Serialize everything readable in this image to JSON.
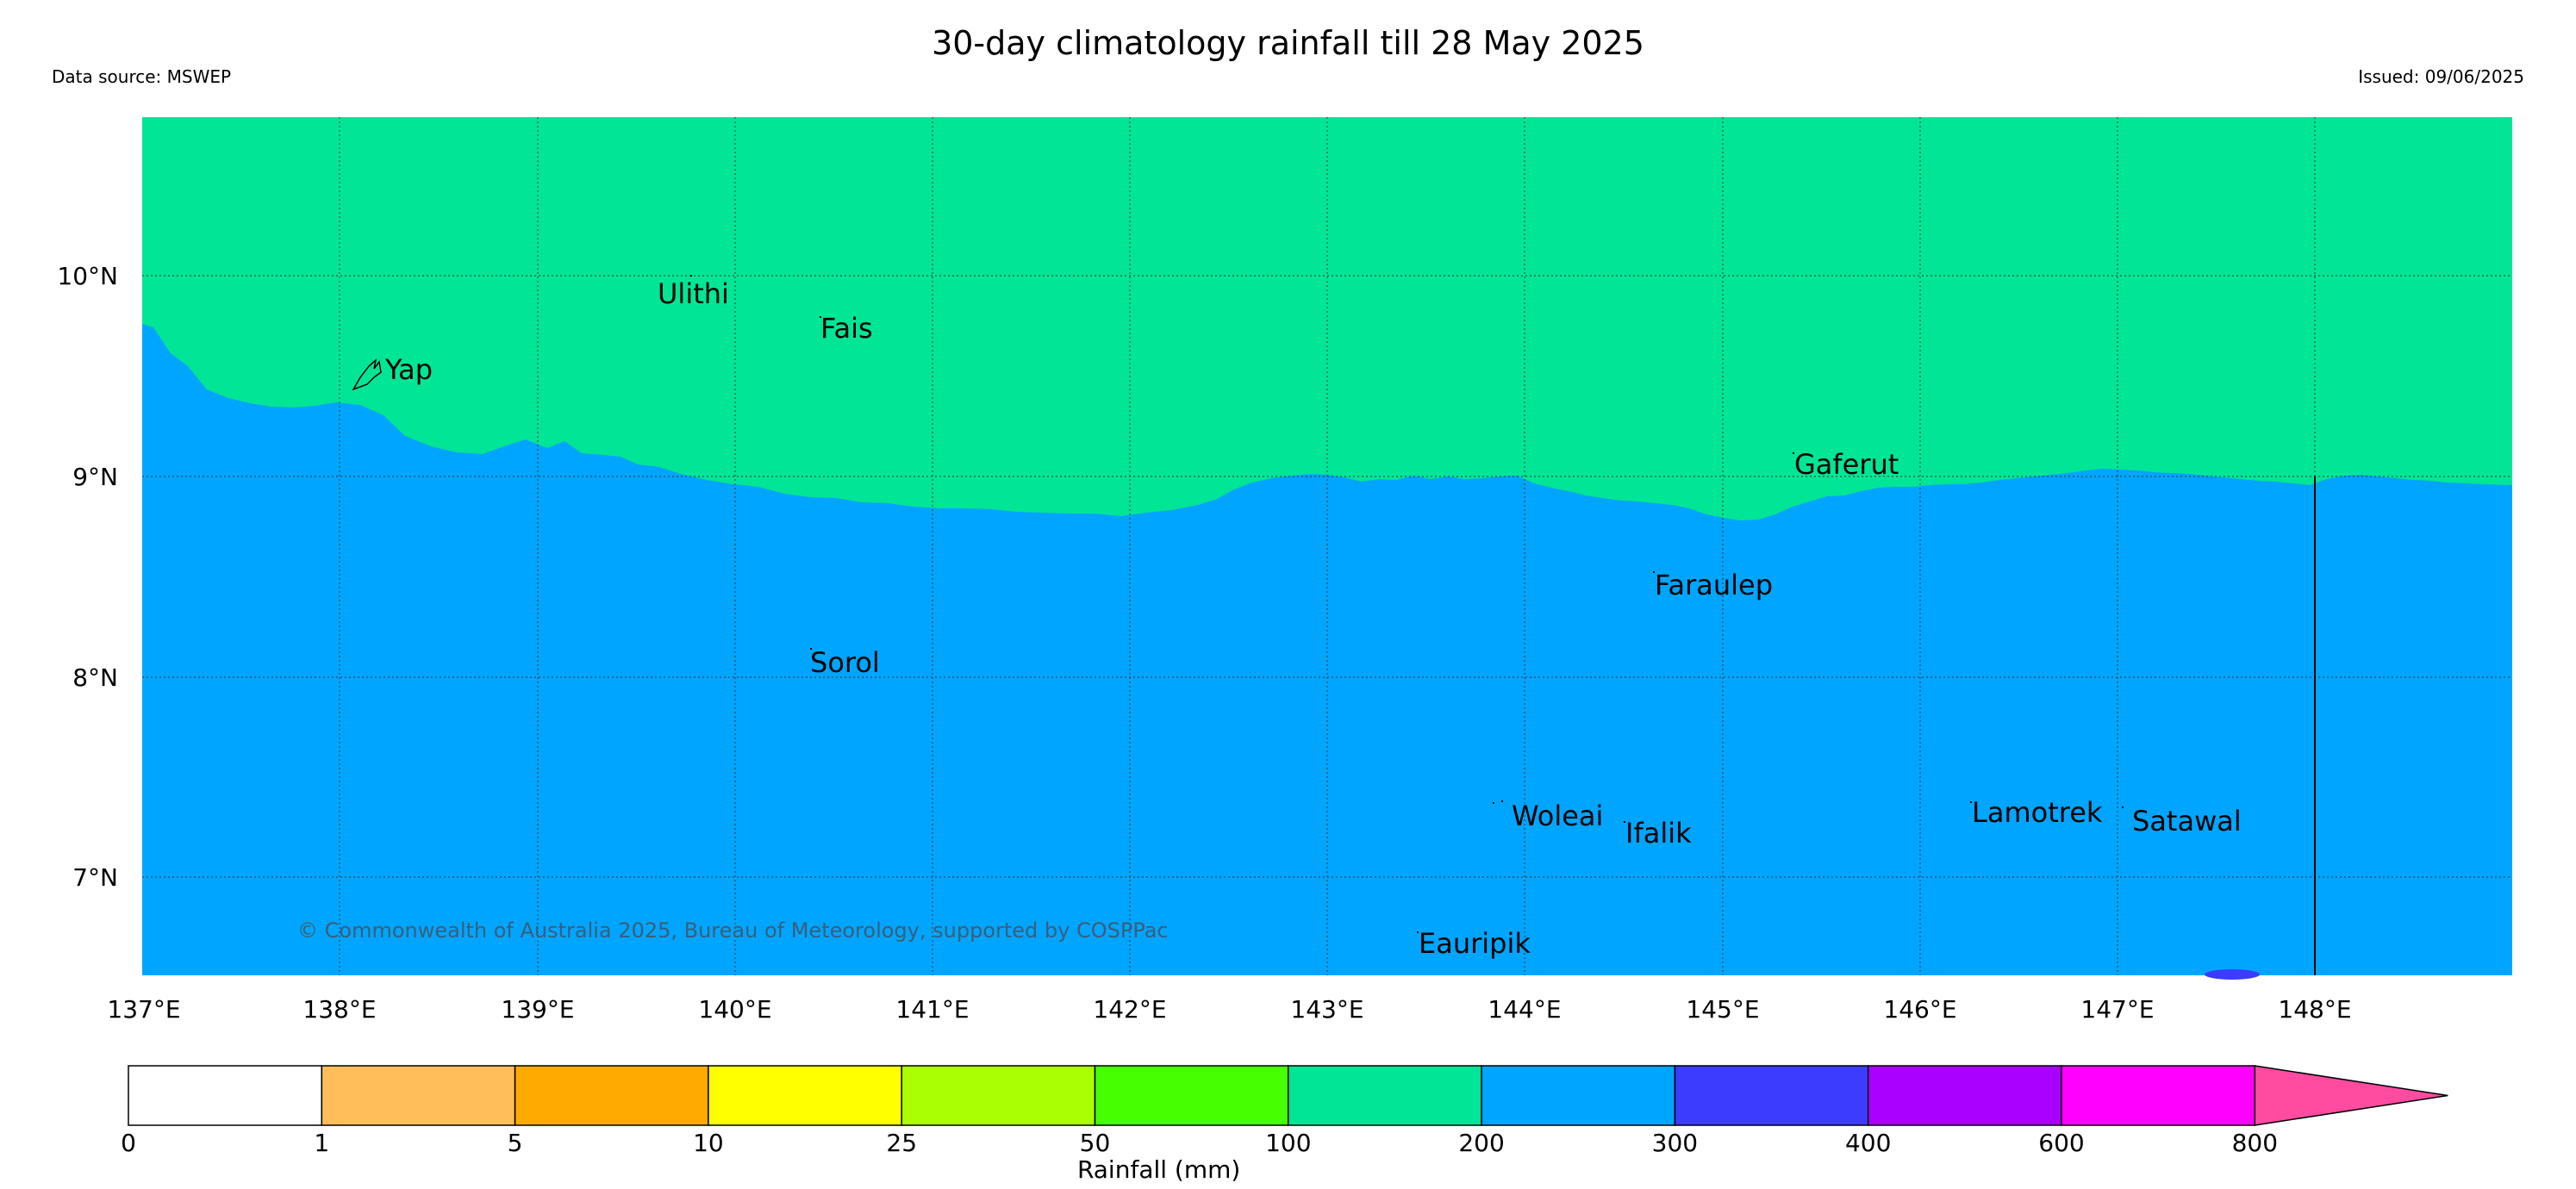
{
  "header": {
    "title": "30-day climatology rainfall till 28 May 2025",
    "source": "Data source: MSWEP",
    "issued": "Issued: 09/06/2025"
  },
  "map": {
    "lat_labels": [
      "10°N",
      "9°N",
      "8°N",
      "7°N"
    ],
    "lon_labels": [
      "137°E",
      "138°E",
      "139°E",
      "140°E",
      "141°E",
      "142°E",
      "143°E",
      "144°E",
      "145°E",
      "146°E",
      "147°E",
      "148°E"
    ],
    "places": {
      "ulithi": "Ulithi",
      "fais": "Fais",
      "yap": "Yap",
      "gaferut": "Gaferut",
      "faraulep": "Faraulep",
      "sorol": "Sorol",
      "woleai": "Woleai",
      "ifalik": "Ifalik",
      "lamotrek": "Lamotrek",
      "satawal": "Satawal",
      "eauripik": "Eauripik"
    },
    "copyright": "© Commonwealth of Australia 2025, Bureau of Meteorology, supported by COSPPac",
    "rainfall_fill": {
      "north_class": "100-200 mm",
      "north_color": "#00e696",
      "south_class": "200-300 mm",
      "south_color": "#00a5ff",
      "spot_class": "300-400 mm",
      "spot_color": "#3c3cff"
    }
  },
  "colorbar": {
    "label": "Rainfall (mm)",
    "ticks": [
      "0",
      "1",
      "5",
      "10",
      "25",
      "50",
      "100",
      "200",
      "300",
      "400",
      "600",
      "800"
    ],
    "colors": [
      "#ffffff",
      "#ffbe5a",
      "#ffaa00",
      "#ffff00",
      "#aaff00",
      "#46ff00",
      "#00e696",
      "#00a5ff",
      "#3c3cff",
      "#aa00ff",
      "#ff00ff",
      "#ff4ba0"
    ]
  }
}
